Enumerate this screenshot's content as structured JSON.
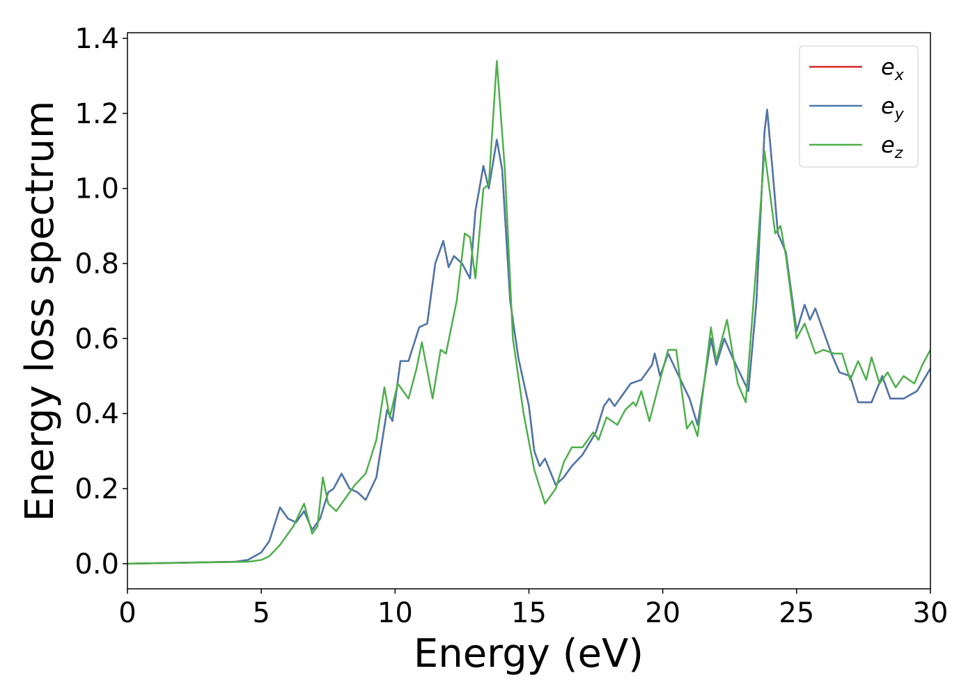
{
  "chart_data": {
    "type": "line",
    "xlabel": "Energy (eV)",
    "ylabel": "Energy loss spectrum",
    "xlim": [
      0,
      30
    ],
    "ylim": [
      -0.067,
      1.415
    ],
    "xticks": [
      0,
      5,
      10,
      15,
      20,
      25,
      30
    ],
    "yticks": [
      {
        "value": 0,
        "label": "0.0"
      },
      0.2,
      0.4,
      0.6,
      0.8,
      {
        "value": 1,
        "label": "1.0"
      },
      1.2,
      1.4
    ],
    "legend": "upper right",
    "series": [
      {
        "name": "ex",
        "color": "#d62728",
        "x": [
          0,
          4,
          4.5,
          5,
          5.3,
          5.7,
          6,
          6.3,
          6.6,
          6.9,
          7.2,
          7.5,
          7.7,
          8,
          8.3,
          8.6,
          8.9,
          9.3,
          9.7,
          9.9,
          10.2,
          10.5,
          10.9,
          11.2,
          11.5,
          11.8,
          12,
          12.2,
          12.5,
          12.8,
          13,
          13.3,
          13.5,
          13.8,
          14,
          14.3,
          14.6,
          15,
          15.2,
          15.4,
          15.6,
          16,
          16.3,
          16.6,
          17,
          17.5,
          17.8,
          18,
          18.2,
          18.5,
          18.8,
          19.2,
          19.6,
          19.7,
          19.9,
          20.2,
          20.4,
          20.6,
          21,
          21.3,
          21.8,
          22,
          22.3,
          22.6,
          23.2,
          23.5,
          23.8,
          23.9,
          24.1,
          24.3,
          24.6,
          25,
          25.3,
          25.5,
          25.7,
          26,
          26.3,
          26.6,
          27,
          27.3,
          27.8,
          28.2,
          28.5,
          29,
          29.5,
          30
        ],
        "values": [
          0,
          0.005,
          0.01,
          0.03,
          0.06,
          0.15,
          0.12,
          0.11,
          0.14,
          0.09,
          0.12,
          0.19,
          0.2,
          0.24,
          0.2,
          0.19,
          0.17,
          0.23,
          0.41,
          0.38,
          0.54,
          0.54,
          0.63,
          0.64,
          0.8,
          0.86,
          0.79,
          0.82,
          0.8,
          0.76,
          0.94,
          1.06,
          1.0,
          1.13,
          1.05,
          0.7,
          0.55,
          0.42,
          0.3,
          0.26,
          0.28,
          0.21,
          0.23,
          0.26,
          0.29,
          0.35,
          0.42,
          0.44,
          0.42,
          0.45,
          0.48,
          0.49,
          0.53,
          0.56,
          0.5,
          0.56,
          0.53,
          0.5,
          0.44,
          0.37,
          0.6,
          0.53,
          0.6,
          0.55,
          0.46,
          0.7,
          1.15,
          1.21,
          1.05,
          0.88,
          0.83,
          0.62,
          0.69,
          0.65,
          0.68,
          0.62,
          0.56,
          0.51,
          0.5,
          0.43,
          0.43,
          0.5,
          0.44,
          0.44,
          0.46,
          0.52
        ]
      },
      {
        "name": "ey",
        "color": "#4a78ad",
        "x": [
          0,
          4,
          4.5,
          5,
          5.3,
          5.7,
          6,
          6.3,
          6.6,
          6.9,
          7.2,
          7.5,
          7.7,
          8,
          8.3,
          8.6,
          8.9,
          9.3,
          9.7,
          9.9,
          10.2,
          10.5,
          10.9,
          11.2,
          11.5,
          11.8,
          12,
          12.2,
          12.5,
          12.8,
          13,
          13.3,
          13.5,
          13.8,
          14,
          14.3,
          14.6,
          15,
          15.2,
          15.4,
          15.6,
          16,
          16.3,
          16.6,
          17,
          17.5,
          17.8,
          18,
          18.2,
          18.5,
          18.8,
          19.2,
          19.6,
          19.7,
          19.9,
          20.2,
          20.4,
          20.6,
          21,
          21.3,
          21.8,
          22,
          22.3,
          22.6,
          23.2,
          23.5,
          23.8,
          23.9,
          24.1,
          24.3,
          24.6,
          25,
          25.3,
          25.5,
          25.7,
          26,
          26.3,
          26.6,
          27,
          27.3,
          27.8,
          28.2,
          28.5,
          29,
          29.5,
          30
        ],
        "values": [
          0,
          0.005,
          0.01,
          0.03,
          0.06,
          0.15,
          0.12,
          0.11,
          0.14,
          0.09,
          0.12,
          0.19,
          0.2,
          0.24,
          0.2,
          0.19,
          0.17,
          0.23,
          0.41,
          0.38,
          0.54,
          0.54,
          0.63,
          0.64,
          0.8,
          0.86,
          0.79,
          0.82,
          0.8,
          0.76,
          0.94,
          1.06,
          1.0,
          1.13,
          1.05,
          0.7,
          0.55,
          0.42,
          0.3,
          0.26,
          0.28,
          0.21,
          0.23,
          0.26,
          0.29,
          0.35,
          0.42,
          0.44,
          0.42,
          0.45,
          0.48,
          0.49,
          0.53,
          0.56,
          0.5,
          0.56,
          0.53,
          0.5,
          0.44,
          0.37,
          0.6,
          0.53,
          0.6,
          0.55,
          0.46,
          0.7,
          1.15,
          1.21,
          1.05,
          0.88,
          0.83,
          0.62,
          0.69,
          0.65,
          0.68,
          0.62,
          0.56,
          0.51,
          0.5,
          0.43,
          0.43,
          0.5,
          0.44,
          0.44,
          0.46,
          0.52
        ]
      },
      {
        "name": "ez",
        "color": "#4daf4a",
        "x": [
          0,
          4.5,
          5,
          5.3,
          5.7,
          6.2,
          6.6,
          6.9,
          7.1,
          7.3,
          7.5,
          7.8,
          8.1,
          8.5,
          8.9,
          9.3,
          9.6,
          9.8,
          10.1,
          10.5,
          10.8,
          11,
          11.4,
          11.7,
          11.9,
          12.3,
          12.6,
          12.8,
          13,
          13.3,
          13.5,
          13.8,
          14.1,
          14.4,
          14.8,
          15.2,
          15.6,
          16,
          16.3,
          16.6,
          17,
          17.4,
          17.6,
          17.9,
          18.3,
          18.6,
          18.9,
          19,
          19.2,
          19.5,
          19.9,
          20.2,
          20.5,
          20.9,
          21.1,
          21.3,
          21.8,
          22,
          22.4,
          22.8,
          23.1,
          23.5,
          23.8,
          24.2,
          24.4,
          24.6,
          25,
          25.3,
          25.7,
          26,
          26.4,
          26.7,
          27,
          27.3,
          27.6,
          27.8,
          28.1,
          28.4,
          28.7,
          29,
          29.4,
          29.7,
          30
        ],
        "values": [
          0,
          0.005,
          0.01,
          0.02,
          0.05,
          0.1,
          0.16,
          0.08,
          0.1,
          0.23,
          0.16,
          0.14,
          0.17,
          0.21,
          0.24,
          0.33,
          0.47,
          0.39,
          0.48,
          0.44,
          0.52,
          0.59,
          0.44,
          0.57,
          0.56,
          0.7,
          0.88,
          0.87,
          0.76,
          1.0,
          1.01,
          1.34,
          1.05,
          0.6,
          0.4,
          0.25,
          0.16,
          0.2,
          0.27,
          0.31,
          0.31,
          0.35,
          0.33,
          0.39,
          0.37,
          0.41,
          0.43,
          0.42,
          0.46,
          0.38,
          0.49,
          0.57,
          0.57,
          0.36,
          0.38,
          0.34,
          0.63,
          0.54,
          0.65,
          0.48,
          0.43,
          0.8,
          1.1,
          0.88,
          0.9,
          0.82,
          0.6,
          0.64,
          0.56,
          0.57,
          0.56,
          0.56,
          0.49,
          0.54,
          0.49,
          0.55,
          0.48,
          0.51,
          0.47,
          0.5,
          0.48,
          0.53,
          0.57
        ]
      }
    ]
  }
}
